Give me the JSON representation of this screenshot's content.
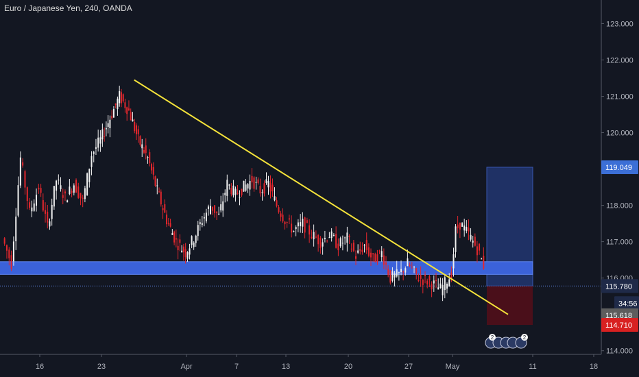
{
  "header": {
    "title": "Euro / Japanese Yen, 240, OANDA"
  },
  "colors": {
    "background": "#131722",
    "up_candle": "#f0f0f0",
    "down_candle": "#e5272d",
    "trendline": "#f5e33a",
    "support_zone": "#3b62d9",
    "target_zone": "#1f3165",
    "stop_zone": "#4a0f1a",
    "axis_text": "#b2b5be",
    "price_line": "#5b7fd6"
  },
  "chart_data": {
    "type": "candlestick",
    "title": "Euro / Japanese Yen, 240, OANDA",
    "xlabel": "",
    "ylabel": "",
    "x_ticks": [
      "16",
      "23",
      "Apr",
      "7",
      "13",
      "20",
      "27",
      "May",
      "11",
      "18"
    ],
    "y_ticks": [
      "114.000",
      "115.000",
      "116.000",
      "117.000",
      "118.000",
      "119.000",
      "120.000",
      "121.000",
      "122.000",
      "123.000"
    ],
    "ylim": [
      113.9,
      123.65
    ],
    "price_series": [
      [
        "03-12",
        117.1
      ],
      [
        "03-13",
        116.4
      ],
      [
        "03-14",
        119.3
      ],
      [
        "03-15",
        117.8
      ],
      [
        "03-16",
        118.5
      ],
      [
        "03-17",
        117.4
      ],
      [
        "03-18",
        118.7
      ],
      [
        "03-19",
        118.2
      ],
      [
        "03-20",
        118.6
      ],
      [
        "03-21",
        118.1
      ],
      [
        "03-22",
        119.4
      ],
      [
        "03-23",
        119.8
      ],
      [
        "03-24",
        120.4
      ],
      [
        "03-25",
        121.0
      ],
      [
        "03-26",
        120.6
      ],
      [
        "03-27",
        119.8
      ],
      [
        "03-28",
        119.3
      ],
      [
        "03-29",
        118.4
      ],
      [
        "03-30",
        117.6
      ],
      [
        "03-31",
        117.0
      ],
      [
        "04-01",
        116.7
      ],
      [
        "04-02",
        117.1
      ],
      [
        "04-03",
        117.6
      ],
      [
        "04-04",
        118.0
      ],
      [
        "04-05",
        117.7
      ],
      [
        "04-06",
        118.6
      ],
      [
        "04-07",
        118.3
      ],
      [
        "04-08",
        118.5
      ],
      [
        "04-09",
        118.7
      ],
      [
        "04-10",
        118.4
      ],
      [
        "04-11",
        118.6
      ],
      [
        "04-12",
        118.0
      ],
      [
        "04-13",
        117.6
      ],
      [
        "04-14",
        117.3
      ],
      [
        "04-15",
        117.5
      ],
      [
        "04-16",
        117.2
      ],
      [
        "04-17",
        117.0
      ],
      [
        "04-18",
        117.2
      ],
      [
        "04-19",
        116.9
      ],
      [
        "04-20",
        117.1
      ],
      [
        "04-21",
        116.6
      ],
      [
        "04-22",
        116.9
      ],
      [
        "04-23",
        116.5
      ],
      [
        "04-24",
        116.7
      ],
      [
        "04-25",
        116.0
      ],
      [
        "04-26",
        116.1
      ],
      [
        "04-27",
        116.4
      ],
      [
        "04-28",
        116.0
      ],
      [
        "04-29",
        115.9
      ],
      [
        "04-30",
        115.7
      ],
      [
        "05-01",
        116.1
      ],
      [
        "05-01b",
        117.3
      ],
      [
        "05-02",
        117.5
      ],
      [
        "05-03",
        117.2
      ],
      [
        "05-04",
        116.8
      ],
      [
        "05-05",
        116.2
      ],
      [
        "05-05b",
        115.78
      ]
    ],
    "trendline": {
      "from": [
        "03-24",
        121.45
      ],
      "to": [
        "05-08",
        115.0
      ]
    },
    "support_zone": {
      "from": "03-09",
      "to": "05-11",
      "low": 116.1,
      "high": 116.45
    },
    "position": {
      "from": "05-05",
      "to": "05-11",
      "entry": 115.78,
      "target": 119.049,
      "stop": 114.71
    },
    "price_labels": [
      {
        "id": "target",
        "text": "119.049"
      },
      {
        "id": "last",
        "text": "115.780"
      },
      {
        "id": "countdown",
        "text": "34:56"
      },
      {
        "id": "bid",
        "text": "115.618"
      },
      {
        "id": "stop",
        "text": "114.710"
      }
    ],
    "event_markers": [
      "2",
      "2"
    ],
    "grid": false,
    "legend": "none"
  }
}
